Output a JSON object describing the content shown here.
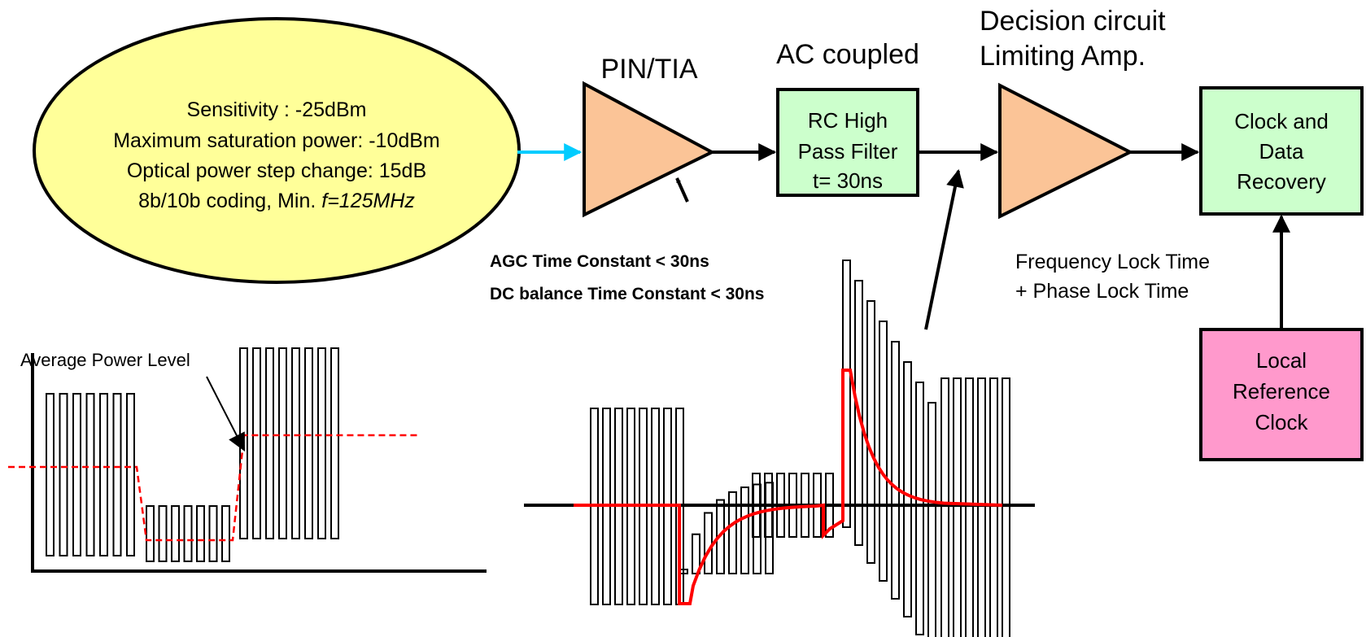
{
  "spec_bubble": {
    "line1": "Sensitivity : -25dBm",
    "line2": "Maximum saturation power: -10dBm",
    "line3": "Optical power step change: 15dB",
    "line4_prefix": "8b/10b coding, Min. ",
    "line4_f": "f",
    "line4_suffix": "=125MHz"
  },
  "pin_tia": {
    "label": "PIN/TIA"
  },
  "ac_coupled": {
    "title": "AC coupled",
    "line1": "RC High",
    "line2": "Pass Filter",
    "line3": "t= 30ns"
  },
  "limiting_amp": {
    "title_line1": "Decision circuit",
    "title_line2": "Limiting Amp."
  },
  "cdr": {
    "line1": "Clock and",
    "line2": "Data",
    "line3": "Recovery"
  },
  "ref_clock": {
    "line1": "Local",
    "line2": "Reference",
    "line3": "Clock"
  },
  "notes": {
    "agc": "AGC Time Constant < 30ns",
    "dc_balance": "DC balance Time Constant < 30ns",
    "lock_line1": "Frequency Lock Time",
    "lock_line2": "+ Phase Lock Time"
  },
  "waveform_left": {
    "label": "Average Power Level"
  },
  "colors": {
    "bubble_fill": "#ffff99",
    "amp_fill": "#fbc497",
    "box_fill": "#ccffcc",
    "ref_fill": "#ff99cc",
    "input_arrow": "#00ccff",
    "trace_red": "#ff0000"
  }
}
